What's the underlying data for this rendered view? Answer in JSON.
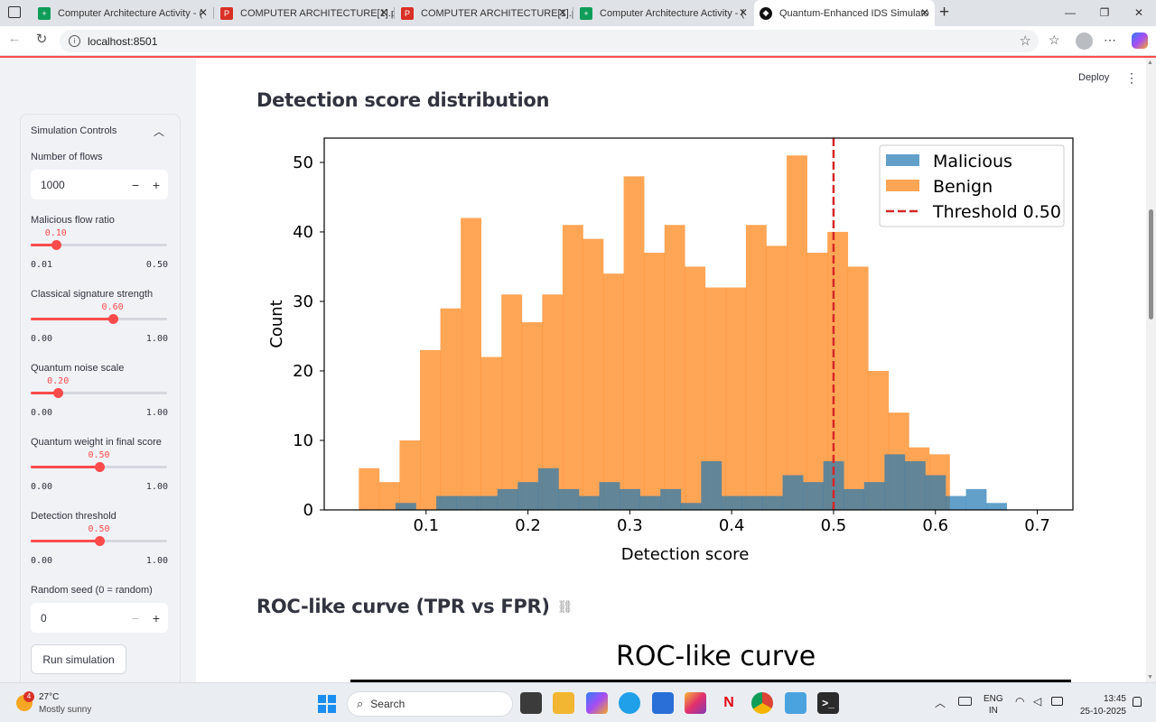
{
  "browser": {
    "tabs": [
      {
        "title": "Computer Architecture Activity - (",
        "kind": "sheets"
      },
      {
        "title": "COMPUTER ARCHITECTURE[1].pdf",
        "kind": "pdf"
      },
      {
        "title": "COMPUTER ARCHITECTURE[1].pdf",
        "kind": "pdf"
      },
      {
        "title": "Computer Architecture Activity - (",
        "kind": "sheets"
      },
      {
        "title": "Quantum-Enhanced IDS Simulato",
        "kind": "streamlit"
      }
    ],
    "url": "localhost:8501"
  },
  "sidebar": {
    "header": "Simulation Controls",
    "num_flows": {
      "label": "Number of flows",
      "value": "1000"
    },
    "sliders": [
      {
        "label": "Classical signature strength",
        "value": "0.60",
        "min": "0.00",
        "max": "1.00",
        "pos": 0.6
      },
      {
        "label": "Quantum noise scale",
        "value": "0.20",
        "min": "0.00",
        "max": "1.00",
        "pos": 0.2
      },
      {
        "label": "Quantum weight in final score",
        "value": "0.50",
        "min": "0.00",
        "max": "1.00",
        "pos": 0.5
      },
      {
        "label": "Detection threshold",
        "value": "0.50",
        "min": "0.00",
        "max": "1.00",
        "pos": 0.5
      }
    ],
    "malicious_ratio": {
      "label": "Malicious flow ratio",
      "value": "0.10",
      "min": "0.01",
      "max": "0.50",
      "pos": 0.1837
    },
    "seed": {
      "label": "Random seed (0 = random)",
      "value": "0"
    },
    "run_button": "Run simulation"
  },
  "header": {
    "deploy": "Deploy"
  },
  "sections": {
    "hist_title": "Detection score distribution",
    "roc_title": "ROC-like curve (TPR vs FPR)",
    "roc_chart_title": "ROC-like curve"
  },
  "chart_data": {
    "type": "histogram",
    "xlabel": "Detection score",
    "ylabel": "Count",
    "xlim": [
      0.0,
      0.735
    ],
    "ylim": [
      0,
      53.5
    ],
    "xticks": [
      "0.1",
      "0.2",
      "0.3",
      "0.4",
      "0.5",
      "0.6",
      "0.7"
    ],
    "yticks": [
      "0",
      "10",
      "20",
      "30",
      "40",
      "50"
    ],
    "threshold": {
      "value": 0.5,
      "label": "Threshold 0.50",
      "color": "#d62728"
    },
    "series": [
      {
        "name": "Malicious",
        "color": "#1f77b4",
        "bin_width": 0.02,
        "start": 0.07,
        "values": [
          1,
          0,
          2,
          2,
          2,
          3,
          4,
          6,
          3,
          2,
          4,
          3,
          2,
          3,
          1,
          7,
          2,
          2,
          2,
          5,
          4,
          7,
          3,
          4,
          8,
          7,
          5,
          2,
          3,
          1
        ]
      },
      {
        "name": "Benign",
        "color": "#ff7f0e",
        "bin_width": 0.02,
        "start": 0.034,
        "values": [
          6,
          4,
          10,
          23,
          29,
          42,
          22,
          31,
          27,
          31,
          41,
          39,
          34,
          48,
          37,
          41,
          35,
          32,
          32,
          41,
          38,
          51,
          37,
          40,
          35,
          20,
          14,
          9,
          8
        ]
      }
    ],
    "legend_position": "top-right"
  },
  "taskbar": {
    "weather_temp": "27°C",
    "weather_desc": "Mostly sunny",
    "weather_badge": "4",
    "search": "Search",
    "lang1": "ENG",
    "lang2": "IN",
    "time": "13:45",
    "date": "25-10-2025"
  }
}
